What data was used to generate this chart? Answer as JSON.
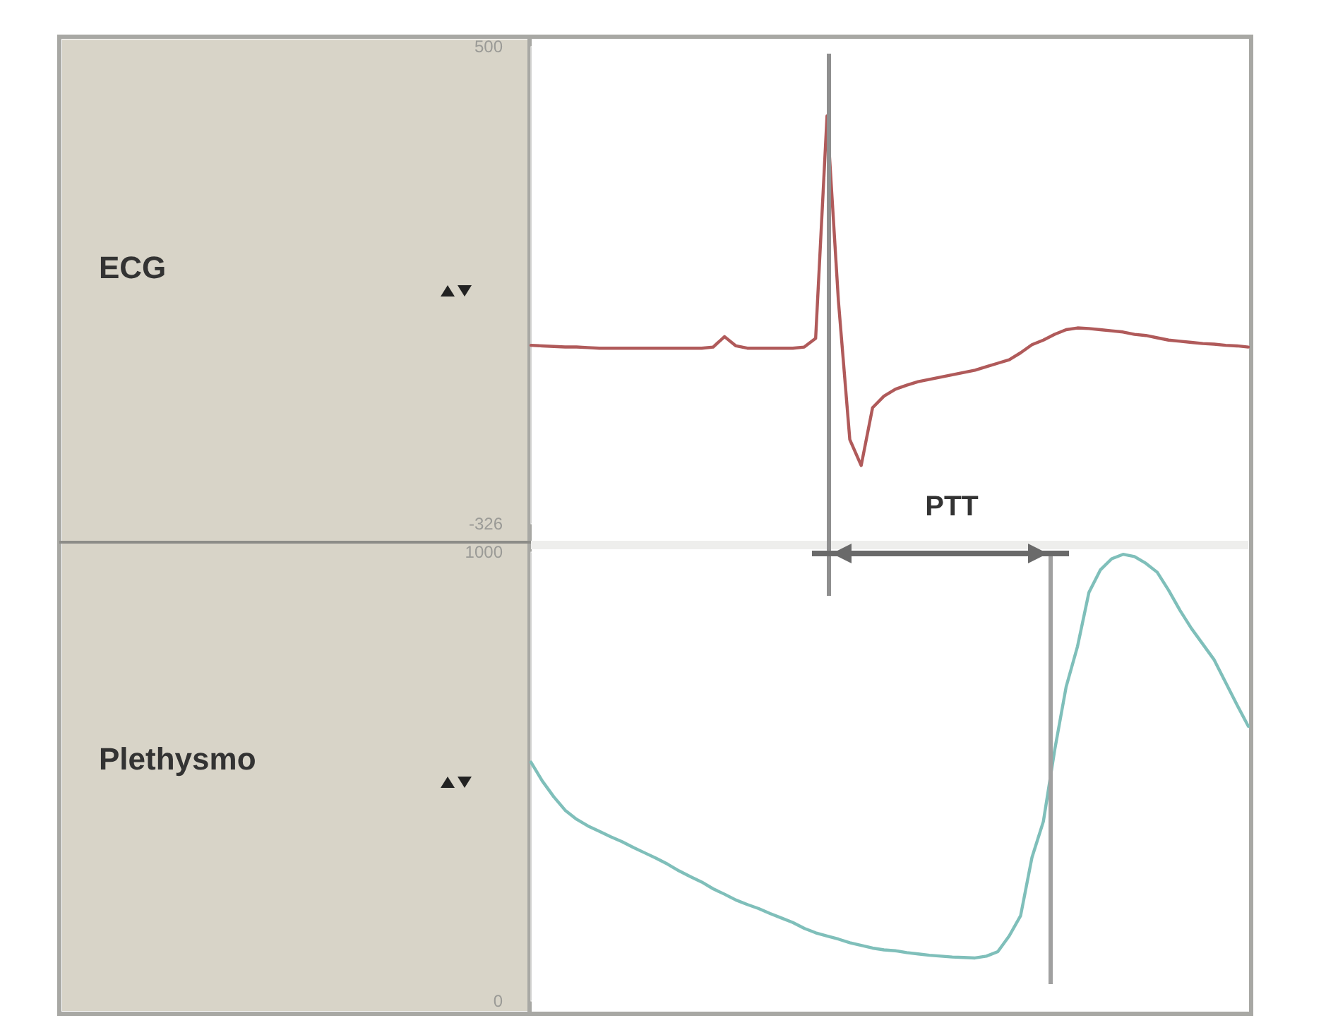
{
  "chart_data": [
    {
      "type": "line",
      "ylabel": "ECG",
      "categories": [
        null,
        null,
        null,
        null,
        null,
        null,
        null,
        null,
        null,
        null,
        null,
        null,
        null,
        null,
        null,
        null,
        null,
        null,
        null,
        null,
        null,
        null,
        null,
        null,
        null,
        null,
        null,
        null,
        null,
        null,
        null,
        null,
        null,
        null,
        null,
        null,
        null,
        null,
        null,
        null,
        null,
        null,
        null,
        null,
        null,
        null,
        null,
        null,
        null,
        null,
        null,
        null,
        null,
        null,
        null,
        null,
        null,
        null,
        null,
        null,
        null,
        null,
        null,
        null
      ],
      "series": [
        {
          "color": "#b05a5a",
          "values": [
            -17,
            -18,
            -19,
            -20,
            -20,
            -21,
            -22,
            -22,
            -22,
            -22,
            -22,
            -22,
            -22,
            -22,
            -22,
            -22,
            -20,
            -2,
            -18,
            -22,
            -22,
            -22,
            -22,
            -22,
            -20,
            -5,
            380,
            60,
            -180,
            -225,
            -125,
            -105,
            -93,
            -86,
            -80,
            -76,
            -72,
            -68,
            -64,
            -60,
            -54,
            -48,
            -42,
            -30,
            -16,
            -8,
            2,
            10,
            13,
            12,
            10,
            8,
            6,
            2,
            0,
            -4,
            -8,
            -10,
            -12,
            -14,
            -15,
            -17,
            -18,
            -20
          ]
        }
      ],
      "ylim": [
        -326,
        500
      ],
      "yticks": [
        -326,
        500
      ],
      "grid": false,
      "annotations": [
        "PTT"
      ]
    },
    {
      "type": "line",
      "ylabel": "Plethysmo",
      "categories": [
        null,
        null,
        null,
        null,
        null,
        null,
        null,
        null,
        null,
        null,
        null,
        null,
        null,
        null,
        null,
        null,
        null,
        null,
        null,
        null,
        null,
        null,
        null,
        null,
        null,
        null,
        null,
        null,
        null,
        null,
        null,
        null,
        null,
        null,
        null,
        null,
        null,
        null,
        null,
        null,
        null,
        null,
        null,
        null,
        null,
        null,
        null,
        null,
        null,
        null,
        null,
        null,
        null,
        null,
        null,
        null,
        null,
        null,
        null,
        null,
        null,
        null,
        null,
        null
      ],
      "series": [
        {
          "color": "#7fbfba",
          "values": [
            532,
            490,
            455,
            425,
            405,
            390,
            378,
            366,
            355,
            342,
            330,
            318,
            305,
            290,
            277,
            265,
            250,
            238,
            225,
            215,
            206,
            195,
            185,
            175,
            162,
            152,
            145,
            138,
            130,
            124,
            118,
            114,
            112,
            108,
            105,
            102,
            100,
            98,
            97,
            96,
            100,
            110,
            145,
            190,
            320,
            400,
            560,
            700,
            790,
            910,
            960,
            985,
            995,
            990,
            975,
            955,
            915,
            870,
            830,
            795,
            760,
            710,
            660,
            612
          ]
        }
      ],
      "ylim": [
        0,
        1000
      ],
      "yticks": [
        0,
        1000
      ],
      "grid": false
    }
  ]
}
